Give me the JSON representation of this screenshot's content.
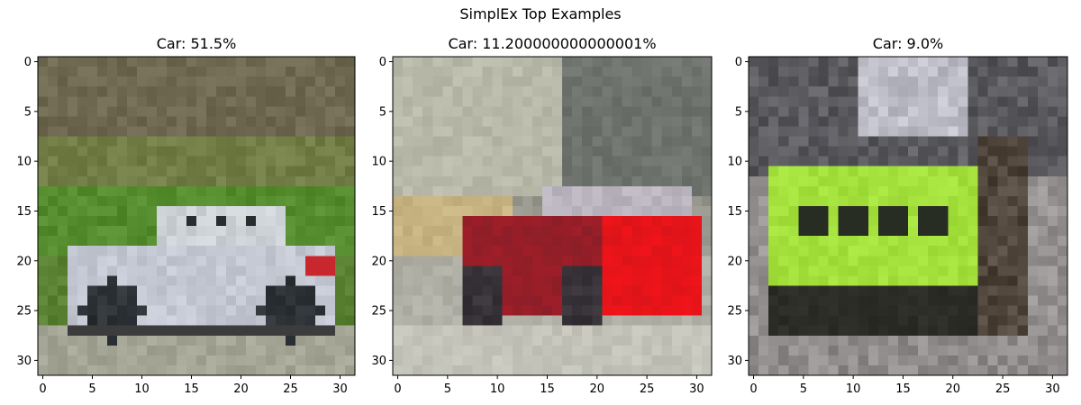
{
  "figure": {
    "suptitle": "SimplEx Top Examples"
  },
  "chart_data": [
    {
      "type": "heatmap",
      "title": "Car: 51.5%",
      "label": "Car",
      "percent_text": "51.5%",
      "image_size": [
        32,
        32
      ],
      "xlim": [
        -0.5,
        31.5
      ],
      "ylim": [
        31.5,
        -0.5
      ],
      "xticks": [
        0,
        5,
        10,
        15,
        20,
        25,
        30
      ],
      "yticks": [
        0,
        5,
        10,
        15,
        20,
        25,
        30
      ],
      "xlabel": "",
      "ylabel": "",
      "grid": false,
      "image_description": "silver sports car driving past green field"
    },
    {
      "type": "heatmap",
      "title": "Car: 11.200000000000001%",
      "label": "Car",
      "percent_text": "11.200000000000001%",
      "image_size": [
        32,
        32
      ],
      "xlim": [
        -0.5,
        31.5
      ],
      "ylim": [
        31.5,
        -0.5
      ],
      "xticks": [
        0,
        5,
        10,
        15,
        20,
        25,
        30
      ],
      "yticks": [
        0,
        5,
        10,
        15,
        20,
        25,
        30
      ],
      "xlabel": "",
      "ylabel": "",
      "grid": false,
      "image_description": "red coupe in front of grey building"
    },
    {
      "type": "heatmap",
      "title": "Car: 9.0%",
      "label": "Car",
      "percent_text": "9.0%",
      "image_size": [
        32,
        32
      ],
      "xlim": [
        -0.5,
        31.5
      ],
      "ylim": [
        31.5,
        -0.5
      ],
      "xticks": [
        0,
        5,
        10,
        15,
        20,
        25,
        30
      ],
      "yticks": [
        0,
        5,
        10,
        15,
        20,
        25,
        30
      ],
      "xlabel": "",
      "ylabel": "",
      "grid": false,
      "image_description": "lime green car on busy street"
    }
  ]
}
